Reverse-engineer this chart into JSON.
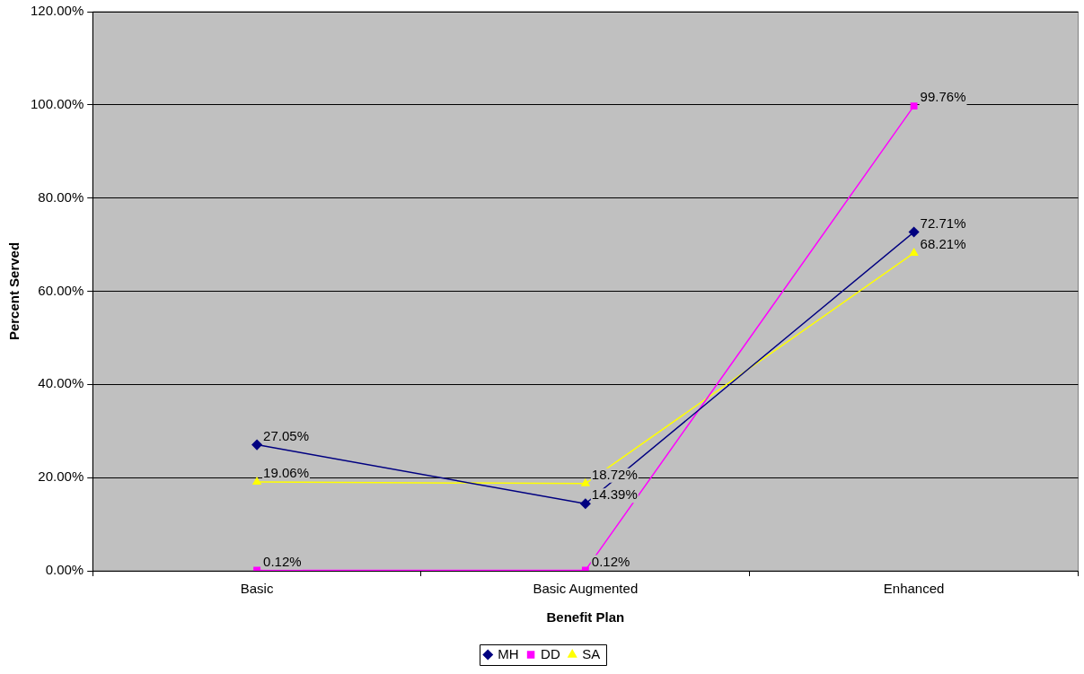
{
  "chart_data": {
    "type": "line",
    "xlabel": "Benefit Plan",
    "ylabel": "Percent Served",
    "categories": [
      "Basic",
      "Basic Augmented",
      "Enhanced"
    ],
    "series": [
      {
        "name": "MH",
        "color": "#000080",
        "marker": "diamond",
        "values": [
          27.05,
          14.39,
          72.71
        ],
        "value_labels": [
          "27.05%",
          "14.39%",
          "72.71%"
        ]
      },
      {
        "name": "DD",
        "color": "#ff00ff",
        "marker": "square",
        "values": [
          0.12,
          0.12,
          99.76
        ],
        "value_labels": [
          "0.12%",
          "0.12%",
          "99.76%"
        ]
      },
      {
        "name": "SA",
        "color": "#ffff00",
        "marker": "triangle",
        "values": [
          19.06,
          18.72,
          68.21
        ],
        "value_labels": [
          "19.06%",
          "18.72%",
          "68.21%"
        ]
      }
    ],
    "ylim": [
      0,
      120
    ],
    "yticks": [
      {
        "value": 0,
        "label": "0.00%"
      },
      {
        "value": 20,
        "label": "20.00%"
      },
      {
        "value": 40,
        "label": "40.00%"
      },
      {
        "value": 60,
        "label": "60.00%"
      },
      {
        "value": 80,
        "label": "80.00%"
      },
      {
        "value": 100,
        "label": "100.00%"
      },
      {
        "value": 120,
        "label": "120.00%"
      }
    ],
    "grid": "y",
    "legend": "bottom",
    "line_style": "solid"
  }
}
